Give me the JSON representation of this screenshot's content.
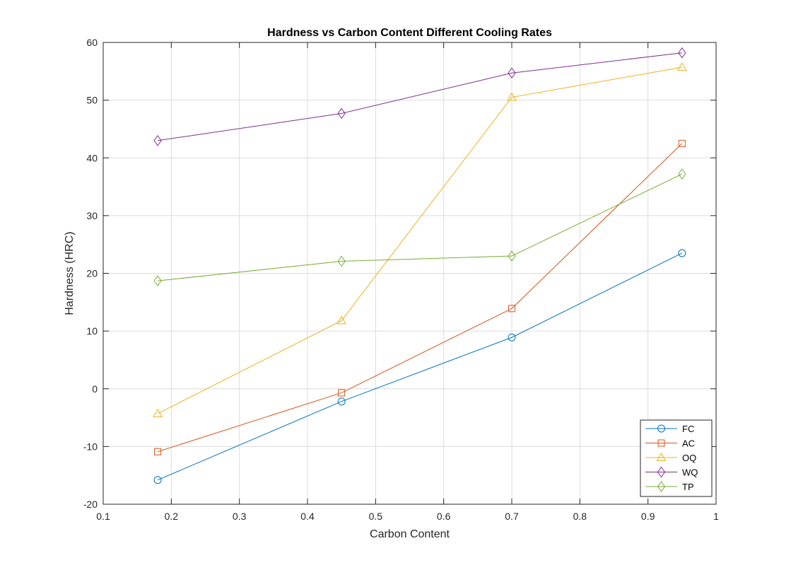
{
  "chart_data": {
    "type": "line",
    "title": "Hardness vs Carbon Content Different Cooling Rates",
    "xlabel": "Carbon Content",
    "ylabel": "Hardness (HRC)",
    "xlim": [
      0.1,
      1
    ],
    "ylim": [
      -20,
      60
    ],
    "xticks": [
      0.1,
      0.2,
      0.3,
      0.4,
      0.5,
      0.6,
      0.7,
      0.8,
      0.9,
      1
    ],
    "xtick_labels": [
      "0.1",
      "0.2",
      "0.3",
      "0.4",
      "0.5",
      "0.6",
      "0.7",
      "0.8",
      "0.9",
      "1"
    ],
    "yticks": [
      -20,
      -10,
      0,
      10,
      20,
      30,
      40,
      50,
      60
    ],
    "ytick_labels": [
      "-20",
      "-10",
      "0",
      "10",
      "20",
      "30",
      "40",
      "50",
      "60"
    ],
    "grid": true,
    "legend_position": "bottom-right",
    "x": [
      0.18,
      0.45,
      0.7,
      0.95
    ],
    "series": [
      {
        "name": "FC",
        "values": [
          -15.8,
          -2.2,
          8.9,
          23.5
        ],
        "color": "#0072BD",
        "marker": "circle"
      },
      {
        "name": "AC",
        "values": [
          -10.9,
          -0.7,
          13.9,
          42.5
        ],
        "color": "#D95319",
        "marker": "square"
      },
      {
        "name": "OQ",
        "values": [
          -4.3,
          11.8,
          50.5,
          55.7
        ],
        "color": "#EDB120",
        "marker": "triangle"
      },
      {
        "name": "WQ",
        "values": [
          43.0,
          47.7,
          54.7,
          58.2
        ],
        "color": "#7E2F8E",
        "marker": "diamond"
      },
      {
        "name": "TP",
        "values": [
          18.7,
          22.1,
          23.0,
          37.2
        ],
        "color": "#77AC30",
        "marker": "diamond"
      }
    ]
  }
}
